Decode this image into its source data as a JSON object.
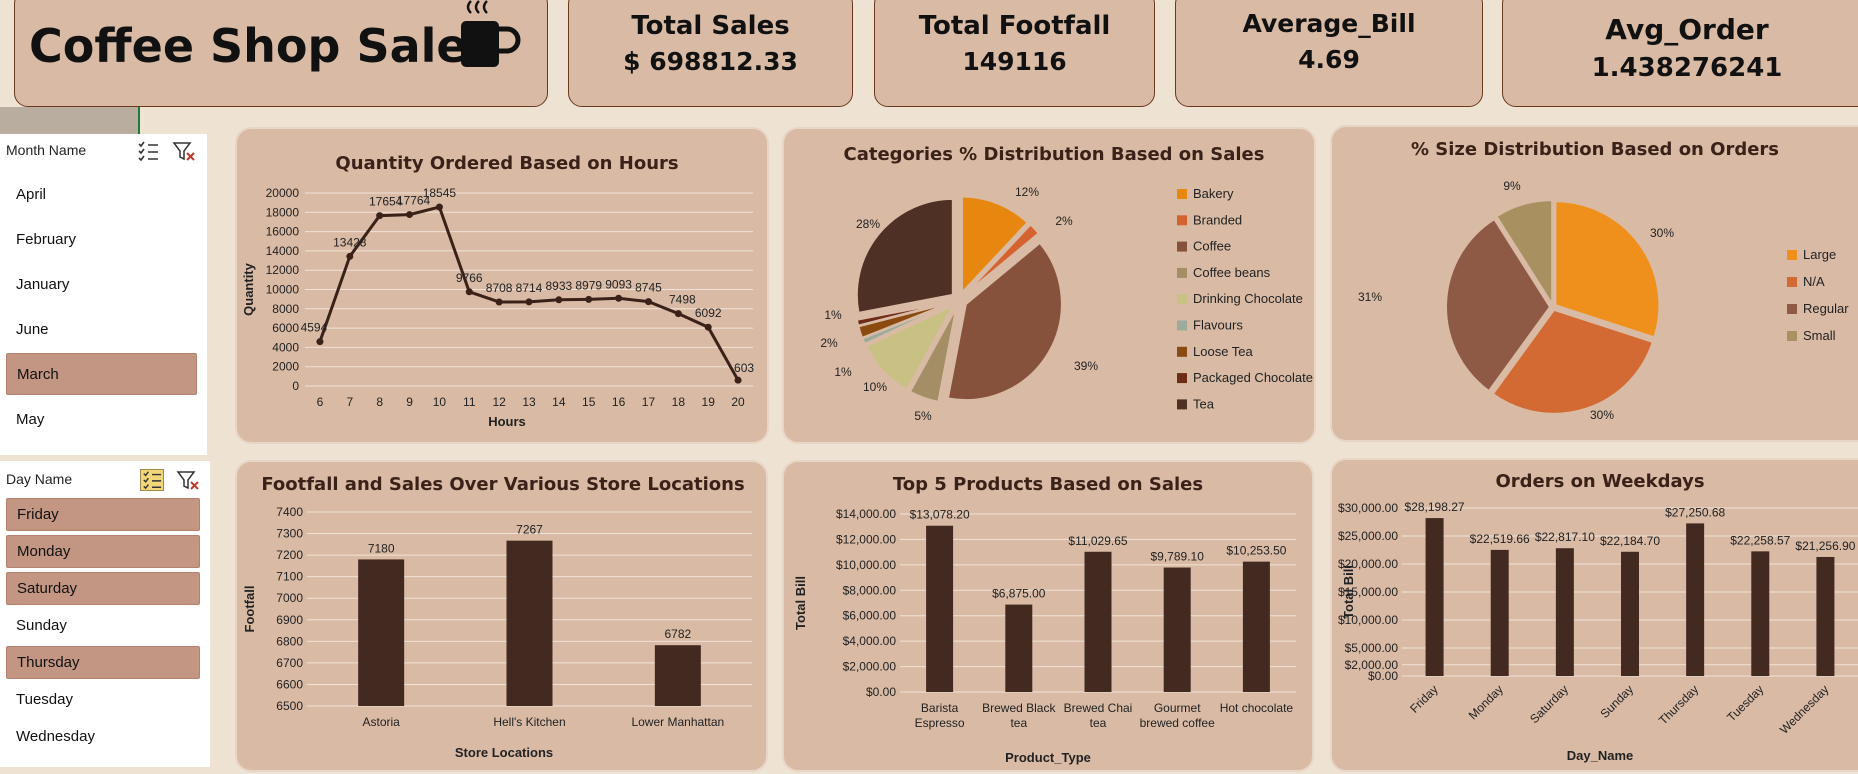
{
  "header": {
    "title": "Coffee Shop Sales",
    "icon": "coffee-cup-icon"
  },
  "kpis": [
    {
      "title": "Total Sales",
      "value": "$ 698812.33"
    },
    {
      "title": "Total Footfall",
      "value": "149116"
    },
    {
      "title": "Average_Bill",
      "value": "4.69"
    },
    {
      "title": "Avg_Order",
      "value": "1.438276241"
    }
  ],
  "month_slicer": {
    "label": "Month Name",
    "items": [
      {
        "label": "April",
        "selected": false
      },
      {
        "label": "February",
        "selected": false
      },
      {
        "label": "January",
        "selected": false
      },
      {
        "label": "June",
        "selected": false
      },
      {
        "label": "March",
        "selected": true
      },
      {
        "label": "May",
        "selected": false
      }
    ]
  },
  "day_slicer": {
    "label": "Day Name",
    "items": [
      {
        "label": "Friday",
        "selected": true
      },
      {
        "label": "Monday",
        "selected": true
      },
      {
        "label": "Saturday",
        "selected": true
      },
      {
        "label": "Sunday",
        "selected": false
      },
      {
        "label": "Thursday",
        "selected": true
      },
      {
        "label": "Tuesday",
        "selected": false
      },
      {
        "label": "Wednesday",
        "selected": false
      }
    ]
  },
  "colors": {
    "dark_bar": "#432a20",
    "panel": "#d9bba5",
    "selected": "#c39683"
  },
  "chart_data": [
    {
      "id": "hours",
      "type": "line",
      "title": "Quantity Ordered Based on Hours",
      "xlabel": "Hours",
      "ylabel": "Quantity",
      "x": [
        6,
        7,
        8,
        9,
        10,
        11,
        12,
        13,
        14,
        15,
        16,
        17,
        18,
        19,
        20
      ],
      "values": [
        4594,
        13428,
        17654,
        17764,
        18545,
        9766,
        8708,
        8714,
        8933,
        8979,
        9093,
        8745,
        7498,
        6092,
        603
      ],
      "yticks": [
        0,
        2000,
        4000,
        6000,
        8000,
        10000,
        12000,
        14000,
        16000,
        18000,
        20000
      ],
      "ylim": [
        0,
        20000
      ],
      "grid": true
    },
    {
      "id": "categories",
      "type": "pie",
      "title": "Categories % Distribution Based on Sales",
      "labels": [
        "Bakery",
        "Branded",
        "Coffee",
        "Coffee beans",
        "Drinking Chocolate",
        "Flavours",
        "Loose Tea",
        "Packaged Chocolate",
        "Tea"
      ],
      "values": [
        12,
        2,
        39,
        5,
        10,
        1,
        2,
        1,
        28
      ],
      "value_labels": [
        "12%",
        "2%",
        "39%",
        "5%",
        "10%",
        "1%",
        "2%",
        "1%",
        "28%"
      ],
      "colors": [
        "#e8870f",
        "#d4632f",
        "#87523c",
        "#a48e66",
        "#c9c183",
        "#9cab9b",
        "#8b4a10",
        "#6e2c18",
        "#4e3024"
      ],
      "legend": "right"
    },
    {
      "id": "sizes",
      "type": "pie",
      "title": "% Size Distribution Based on Orders",
      "labels": [
        "Large",
        "N/A",
        "Regular",
        "Small"
      ],
      "values": [
        30,
        30,
        31,
        9
      ],
      "value_labels": [
        "30%",
        "30%",
        "31%",
        "9%"
      ],
      "colors": [
        "#f0901c",
        "#d36a33",
        "#8f5a45",
        "#a99061"
      ],
      "legend": "right"
    },
    {
      "id": "locations",
      "type": "bar",
      "title": "Footfall and Sales Over Various Store Locations",
      "xlabel": "Store Locations",
      "ylabel": "Footfall",
      "categories": [
        "Astoria",
        "Hell's Kitchen",
        "Lower Manhattan"
      ],
      "values": [
        7180,
        7267,
        6782
      ],
      "yticks": [
        6500,
        6600,
        6700,
        6800,
        6900,
        7000,
        7100,
        7200,
        7300,
        7400
      ],
      "ylim": [
        6500,
        7400
      ],
      "grid": true
    },
    {
      "id": "products",
      "type": "bar",
      "title": "Top 5 Products Based on Sales",
      "xlabel": "Product_Type",
      "ylabel": "Total Bill",
      "categories": [
        [
          "Barista",
          "Espresso"
        ],
        [
          "Brewed Black",
          "tea"
        ],
        [
          "Brewed Chai",
          "tea"
        ],
        [
          "Gourmet",
          "brewed coffee"
        ],
        [
          "Hot chocolate"
        ]
      ],
      "values": [
        13078.2,
        6875.0,
        11029.65,
        9789.1,
        10253.5
      ],
      "value_labels": [
        "$13,078.20",
        "$6,875.00",
        "$11,029.65",
        "$9,789.10",
        "$10,253.50"
      ],
      "yticks": [
        "$0.00",
        "$2,000.00",
        "$4,000.00",
        "$6,000.00",
        "$8,000.00",
        "$10,000.00",
        "$12,000.00",
        "$14,000.00"
      ],
      "ylim": [
        0,
        14000
      ],
      "grid": true
    },
    {
      "id": "weekdays",
      "type": "bar",
      "title": "Orders on Weekdays",
      "xlabel": "Day_Name",
      "ylabel": "Total Bill",
      "categories": [
        "Friday",
        "Monday",
        "Saturday",
        "Sunday",
        "Thursday",
        "Tuesday",
        "Wednesday"
      ],
      "values": [
        28198.27,
        22519.66,
        22817.1,
        22184.7,
        27250.68,
        22258.57,
        21256.9
      ],
      "value_labels": [
        "$28,198.27",
        "$22,519.66",
        "$22,817.10",
        "$22,184.70",
        "$27,250.68",
        "$22,258.57",
        "$21,256.90"
      ],
      "yticks": [
        "$0.00",
        "$2,000.00",
        "$5,000.00",
        "$10,000.00",
        "$15,000.00",
        "$20,000.00",
        "$25,000.00",
        "$30,000.00"
      ],
      "ylim": [
        0,
        30000
      ],
      "grid": true
    }
  ]
}
